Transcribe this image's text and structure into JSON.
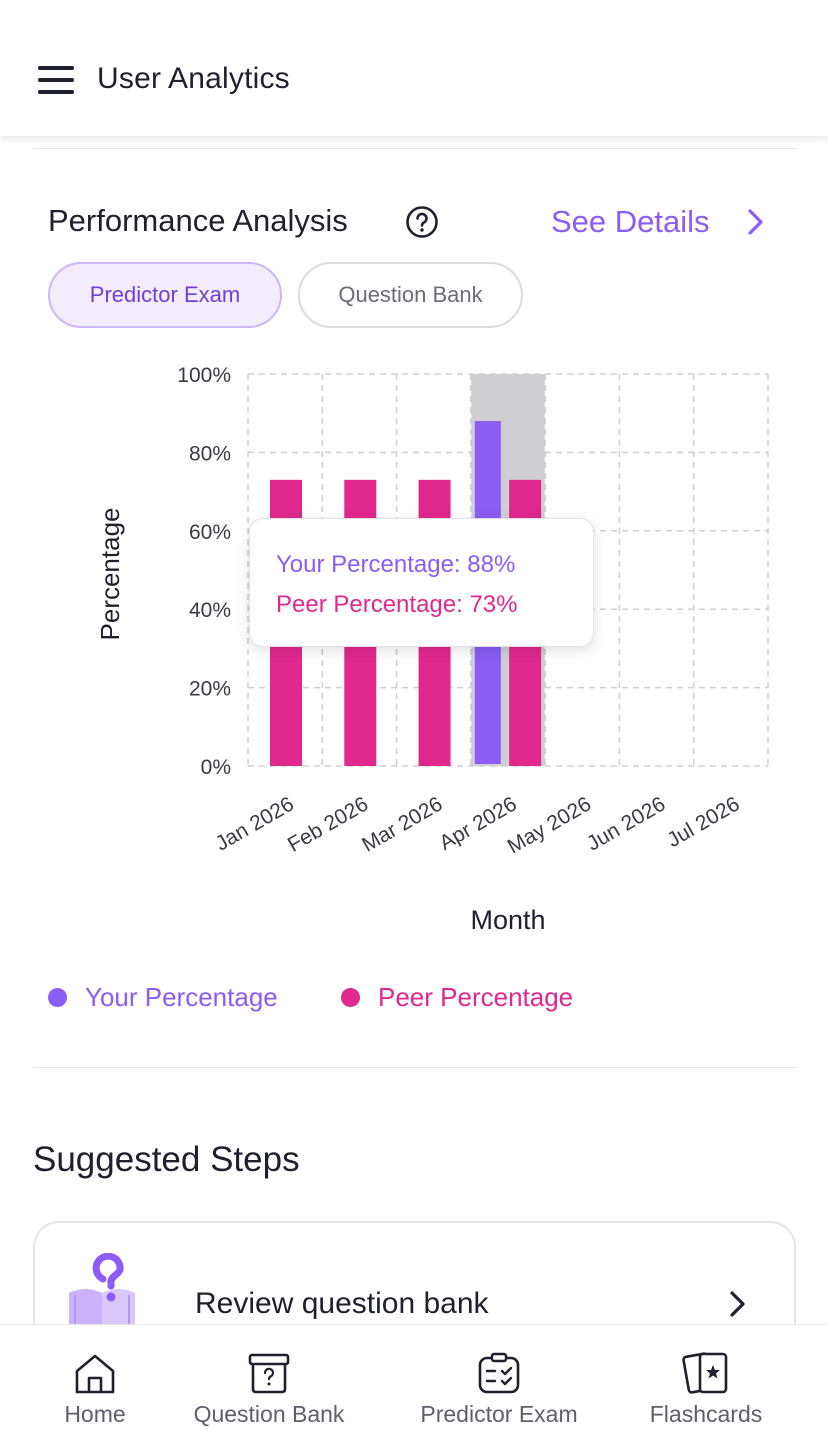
{
  "header": {
    "title": "User Analytics",
    "menu_icon": "hamburger-menu-icon"
  },
  "performance": {
    "title": "Performance Analysis",
    "help_icon": "question-circle-icon",
    "see_details": "See Details",
    "tabs": [
      {
        "label": "Predictor Exam",
        "active": true
      },
      {
        "label": "Question Bank",
        "active": false
      }
    ]
  },
  "chart_data": {
    "type": "bar",
    "categories": [
      "Jan 2026",
      "Feb 2026",
      "Mar 2026",
      "Apr 2026",
      "May 2026",
      "Jun 2026",
      "Jul 2026"
    ],
    "series": [
      {
        "name": "Your Percentage",
        "color": "#8b5cf6",
        "values": [
          null,
          null,
          null,
          88,
          null,
          null,
          null
        ]
      },
      {
        "name": "Peer Percentage",
        "color": "#e0288f",
        "values": [
          73,
          73,
          73,
          73,
          null,
          null,
          null
        ]
      }
    ],
    "xlabel": "Month",
    "ylabel": "Percentage",
    "ylim": [
      0,
      100
    ],
    "yticks": [
      "0%",
      "20%",
      "40%",
      "60%",
      "80%",
      "100%"
    ],
    "grid": true,
    "highlighted_category": "Apr 2026",
    "legend_position": "bottom",
    "tooltip": {
      "your_line": "Your Percentage: 88%",
      "peer_line": "Peer Percentage: 73%"
    }
  },
  "legend": [
    {
      "label": "Your Percentage",
      "color": "#8b5cf6"
    },
    {
      "label": "Peer Percentage",
      "color": "#e0288f"
    }
  ],
  "suggested": {
    "title": "Suggested Steps",
    "items": [
      {
        "label": "Review question bank",
        "icon": "question-book-icon"
      }
    ]
  },
  "nav": [
    {
      "label": "Home",
      "icon": "home-icon"
    },
    {
      "label": "Question Bank",
      "icon": "question-bank-icon"
    },
    {
      "label": "Predictor Exam",
      "icon": "predictor-exam-icon"
    },
    {
      "label": "Flashcards",
      "icon": "flashcards-icon"
    }
  ]
}
